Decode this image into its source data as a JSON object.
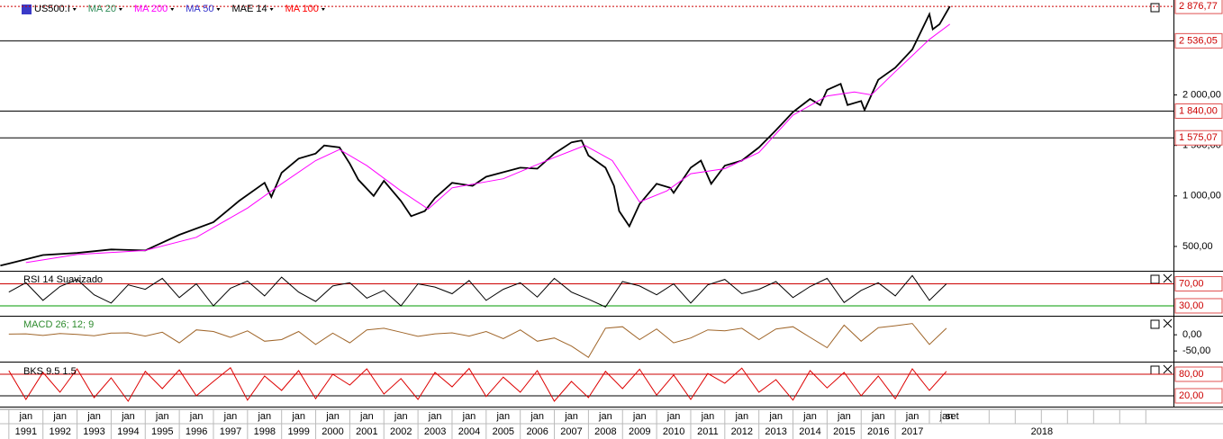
{
  "time_axis": {
    "xlim": [
      1990.74,
      2025.16
    ],
    "xticks": [
      1991,
      1992,
      1993,
      1994,
      1995,
      1996,
      1997,
      1998,
      1999,
      2000,
      2001,
      2002,
      2003,
      2004,
      2005,
      2006,
      2007,
      2008,
      2009,
      2010,
      2011,
      2012,
      2013,
      2014,
      2015,
      2016,
      2017
    ],
    "month_label": "jan",
    "month_ticks": [
      1991,
      1992,
      1993,
      1994,
      1995,
      1996,
      1997,
      1998,
      1999,
      2000,
      2001,
      2002,
      2003,
      2004,
      2005,
      2006,
      2007,
      2008,
      2009,
      2010,
      2011,
      2012,
      2013,
      2014,
      2015,
      2016,
      2017,
      2018
    ],
    "extra_ticks": [
      {
        "value": 2018.67,
        "label": "set"
      }
    ],
    "far_year": {
      "value": 2021.3,
      "label": "2018"
    }
  },
  "chart_data": [
    {
      "type": "line",
      "legend": [
        {
          "name": "US500.I",
          "color": "#000000"
        },
        {
          "name": "MA 20",
          "color": "#2e8b57"
        },
        {
          "name": "MA 200",
          "color": "#ff00ff"
        },
        {
          "name": "MA 50",
          "color": "#3333cc"
        },
        {
          "name": "MAE 14",
          "color": "#000000"
        },
        {
          "name": "MA 100",
          "color": "#ff0000"
        }
      ],
      "series": [
        {
          "color": "#000000",
          "x": [
            1990.75,
            1991,
            1992,
            1993,
            1994,
            1995,
            1996,
            1997,
            1997.75,
            1998.5,
            1998.7,
            1999,
            1999.5,
            2000,
            2000.25,
            2000.7,
            2001,
            2001.25,
            2001.7,
            2002,
            2002.5,
            2002.8,
            2003.2,
            2003.5,
            2004,
            2004.6,
            2005,
            2006,
            2006.5,
            2007,
            2007.5,
            2007.8,
            2008,
            2008.5,
            2008.75,
            2008.9,
            2009.2,
            2009.5,
            2010,
            2010.4,
            2010.5,
            2011,
            2011.3,
            2011.6,
            2012,
            2012.5,
            2013,
            2013.5,
            2014,
            2014.5,
            2014.8,
            2015,
            2015.4,
            2015.6,
            2016,
            2016.1,
            2016.5,
            2017,
            2017.5,
            2018,
            2018.1,
            2018.3,
            2018.6
          ],
          "values": [
            310,
            330,
            415,
            435,
            470,
            460,
            615,
            740,
            950,
            1130,
            990,
            1230,
            1370,
            1420,
            1500,
            1480,
            1320,
            1160,
            1000,
            1150,
            950,
            800,
            850,
            980,
            1130,
            1100,
            1190,
            1280,
            1270,
            1420,
            1530,
            1550,
            1400,
            1280,
            1100,
            850,
            700,
            920,
            1120,
            1080,
            1030,
            1280,
            1350,
            1120,
            1300,
            1350,
            1480,
            1650,
            1830,
            1960,
            1900,
            2050,
            2110,
            1900,
            1940,
            1850,
            2150,
            2270,
            2450,
            2800,
            2650,
            2700,
            2877
          ]
        },
        {
          "color": "#ff00ff",
          "x": [
            1991.5,
            1993,
            1995,
            1996.5,
            1998,
            1999,
            2000,
            2000.7,
            2001.5,
            2002.5,
            2003.3,
            2004,
            2005.5,
            2007,
            2007.9,
            2008.7,
            2009.5,
            2010.3,
            2011,
            2012,
            2013,
            2014,
            2015,
            2015.8,
            2016.3,
            2017,
            2018,
            2018.6
          ],
          "values": [
            340,
            420,
            460,
            590,
            880,
            1120,
            1350,
            1460,
            1300,
            1050,
            870,
            1080,
            1170,
            1380,
            1500,
            1350,
            940,
            1050,
            1220,
            1270,
            1430,
            1800,
            1990,
            2030,
            2000,
            2230,
            2550,
            2700
          ]
        }
      ],
      "ylim": [
        259,
        2940
      ],
      "yticks": [
        {
          "value": 500,
          "label": "500,00"
        },
        {
          "value": 1000,
          "label": "1 000,00"
        },
        {
          "value": 1500,
          "label": "1 500,00"
        },
        {
          "value": 2000,
          "label": "2 000,00"
        }
      ],
      "levels": [
        {
          "value": 2876.77,
          "label": "2 876,77",
          "color": "#cc0000",
          "dotted": true
        },
        {
          "value": 2536.05,
          "label": "2 536,05",
          "color": "#000000"
        },
        {
          "value": 1840,
          "label": "1 840,00",
          "color": "#000000"
        },
        {
          "value": 1575.07,
          "label": "1 575,07",
          "color": "#000000"
        }
      ]
    },
    {
      "type": "line",
      "title": "RSI 14 Suavizado",
      "title_color": "#000000",
      "x": [
        1991,
        1991.5,
        1992,
        1992.5,
        1993,
        1993.5,
        1994,
        1994.5,
        1995,
        1995.5,
        1996,
        1996.5,
        1997,
        1997.5,
        1998,
        1998.5,
        1999,
        1999.5,
        2000,
        2000.5,
        2001,
        2001.5,
        2002,
        2002.5,
        2003,
        2003.5,
        2004,
        2004.5,
        2005,
        2005.5,
        2006,
        2006.5,
        2007,
        2007.5,
        2008,
        2008.5,
        2009,
        2009.5,
        2010,
        2010.5,
        2011,
        2011.5,
        2012,
        2012.5,
        2013,
        2013.5,
        2014,
        2014.5,
        2015,
        2015.5,
        2016,
        2016.5,
        2017,
        2017.5,
        2018,
        2018.5
      ],
      "color": "#000000",
      "values": [
        55,
        72,
        40,
        65,
        78,
        50,
        35,
        68,
        60,
        80,
        45,
        70,
        30,
        62,
        75,
        48,
        82,
        55,
        38,
        66,
        72,
        44,
        58,
        30,
        70,
        64,
        52,
        76,
        40,
        60,
        72,
        46,
        80,
        55,
        42,
        28,
        74,
        66,
        50,
        70,
        35,
        68,
        78,
        52,
        60,
        74,
        45,
        65,
        80,
        36,
        58,
        72,
        48,
        85,
        40,
        70
      ],
      "ylim": [
        12,
        92
      ],
      "levels": [
        {
          "value": 70,
          "label": "70,00",
          "color": "#cc0000"
        },
        {
          "value": 30,
          "label": "30,00",
          "color": "#009900"
        }
      ]
    },
    {
      "type": "line",
      "title": "MACD 26; 12; 9",
      "title_color": "#2e8b2e",
      "x": [
        1991,
        1991.5,
        1992,
        1992.5,
        1993,
        1993.5,
        1994,
        1994.5,
        1995,
        1995.5,
        1996,
        1996.5,
        1997,
        1997.5,
        1998,
        1998.5,
        1999,
        1999.5,
        2000,
        2000.5,
        2001,
        2001.5,
        2002,
        2002.5,
        2003,
        2003.5,
        2004,
        2004.5,
        2005,
        2005.5,
        2006,
        2006.5,
        2007,
        2007.5,
        2008,
        2008.5,
        2009,
        2009.5,
        2010,
        2010.5,
        2011,
        2011.5,
        2012,
        2012.5,
        2013,
        2013.5,
        2014,
        2014.5,
        2015,
        2015.5,
        2016,
        2016.5,
        2017,
        2017.5,
        2018,
        2018.5
      ],
      "color": "#a0662a",
      "values": [
        2,
        3,
        -2,
        4,
        1,
        -3,
        5,
        6,
        -4,
        8,
        -25,
        15,
        10,
        -8,
        12,
        -20,
        -15,
        10,
        -30,
        5,
        -25,
        15,
        20,
        8,
        -5,
        3,
        6,
        -4,
        10,
        -12,
        15,
        -20,
        -10,
        -35,
        -70,
        20,
        25,
        -15,
        18,
        -25,
        -10,
        15,
        12,
        20,
        -15,
        18,
        25,
        -8,
        -40,
        30,
        -20,
        22,
        28,
        35,
        -30,
        20
      ],
      "ylim": [
        -83,
        56
      ],
      "yticks": [
        {
          "value": 0,
          "label": "0,00"
        },
        {
          "value": -50,
          "label": "-50,00"
        }
      ]
    },
    {
      "type": "line",
      "title": "BKS 9.5 1.5",
      "title_color": "#000000",
      "x": [
        1991,
        1991.5,
        1992,
        1992.5,
        1993,
        1993.5,
        1994,
        1994.5,
        1995,
        1995.5,
        1996,
        1996.5,
        1997,
        1997.5,
        1998,
        1998.5,
        1999,
        1999.5,
        2000,
        2000.5,
        2001,
        2001.5,
        2002,
        2002.5,
        2003,
        2003.5,
        2004,
        2004.5,
        2005,
        2005.5,
        2006,
        2006.5,
        2007,
        2007.5,
        2008,
        2008.5,
        2009,
        2009.5,
        2010,
        2010.5,
        2011,
        2011.5,
        2012,
        2012.5,
        2013,
        2013.5,
        2014,
        2014.5,
        2015,
        2015.5,
        2016,
        2016.5,
        2017,
        2017.5,
        2018,
        2018.5
      ],
      "color": "#dd0000",
      "values": [
        90,
        10,
        85,
        30,
        95,
        15,
        70,
        5,
        88,
        40,
        92,
        20,
        60,
        98,
        8,
        75,
        35,
        90,
        12,
        80,
        50,
        95,
        25,
        68,
        10,
        85,
        45,
        96,
        18,
        72,
        30,
        90,
        5,
        60,
        15,
        88,
        40,
        94,
        22,
        78,
        10,
        82,
        55,
        97,
        30,
        65,
        8,
        90,
        42,
        85,
        20,
        75,
        12,
        95,
        35,
        88
      ],
      "ylim": [
        -10,
        110
      ],
      "levels": [
        {
          "value": 80,
          "label": "80,00",
          "color": "#cc0000"
        },
        {
          "value": 20,
          "label": "20,00",
          "color": "#000000"
        }
      ]
    }
  ]
}
